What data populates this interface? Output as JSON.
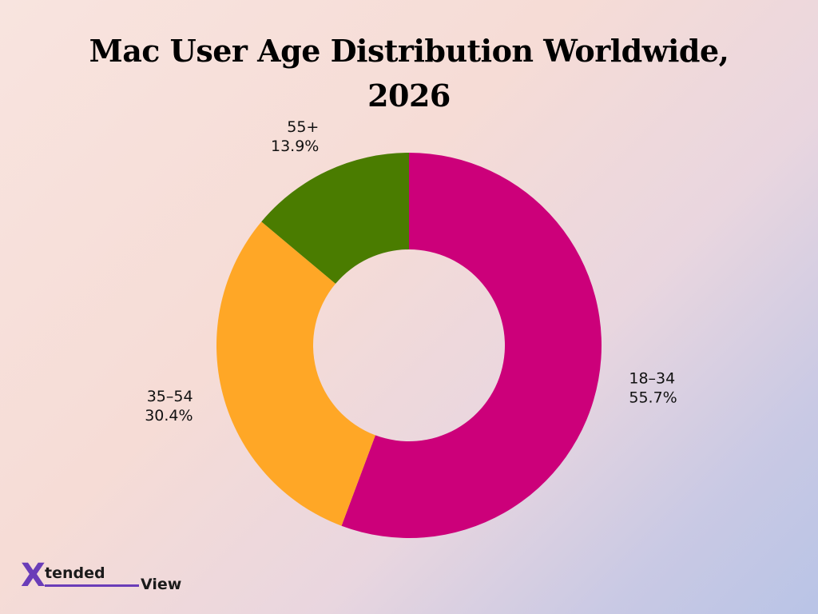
{
  "chart_data": {
    "type": "pie",
    "style": "donut",
    "title": "Mac User Age Distribution Worldwide, 2026",
    "title_lines": [
      "Mac User Age Distribution Worldwide,",
      "2026"
    ],
    "slices": [
      {
        "label": "18–34",
        "value": 55.7,
        "value_text": "55.7%",
        "color": "#cc007a"
      },
      {
        "label": "35–54",
        "value": 30.4,
        "value_text": "30.4%",
        "color": "#ffa726"
      },
      {
        "label": "55+",
        "value": 13.9,
        "value_text": "13.9%",
        "color": "#4a7c00"
      }
    ]
  },
  "brand": {
    "logo_x": "X",
    "logo_text_1": "tended",
    "logo_text_2": "View",
    "colors": {
      "accent": "#6a3db8",
      "text": "#1b1b1b"
    }
  }
}
